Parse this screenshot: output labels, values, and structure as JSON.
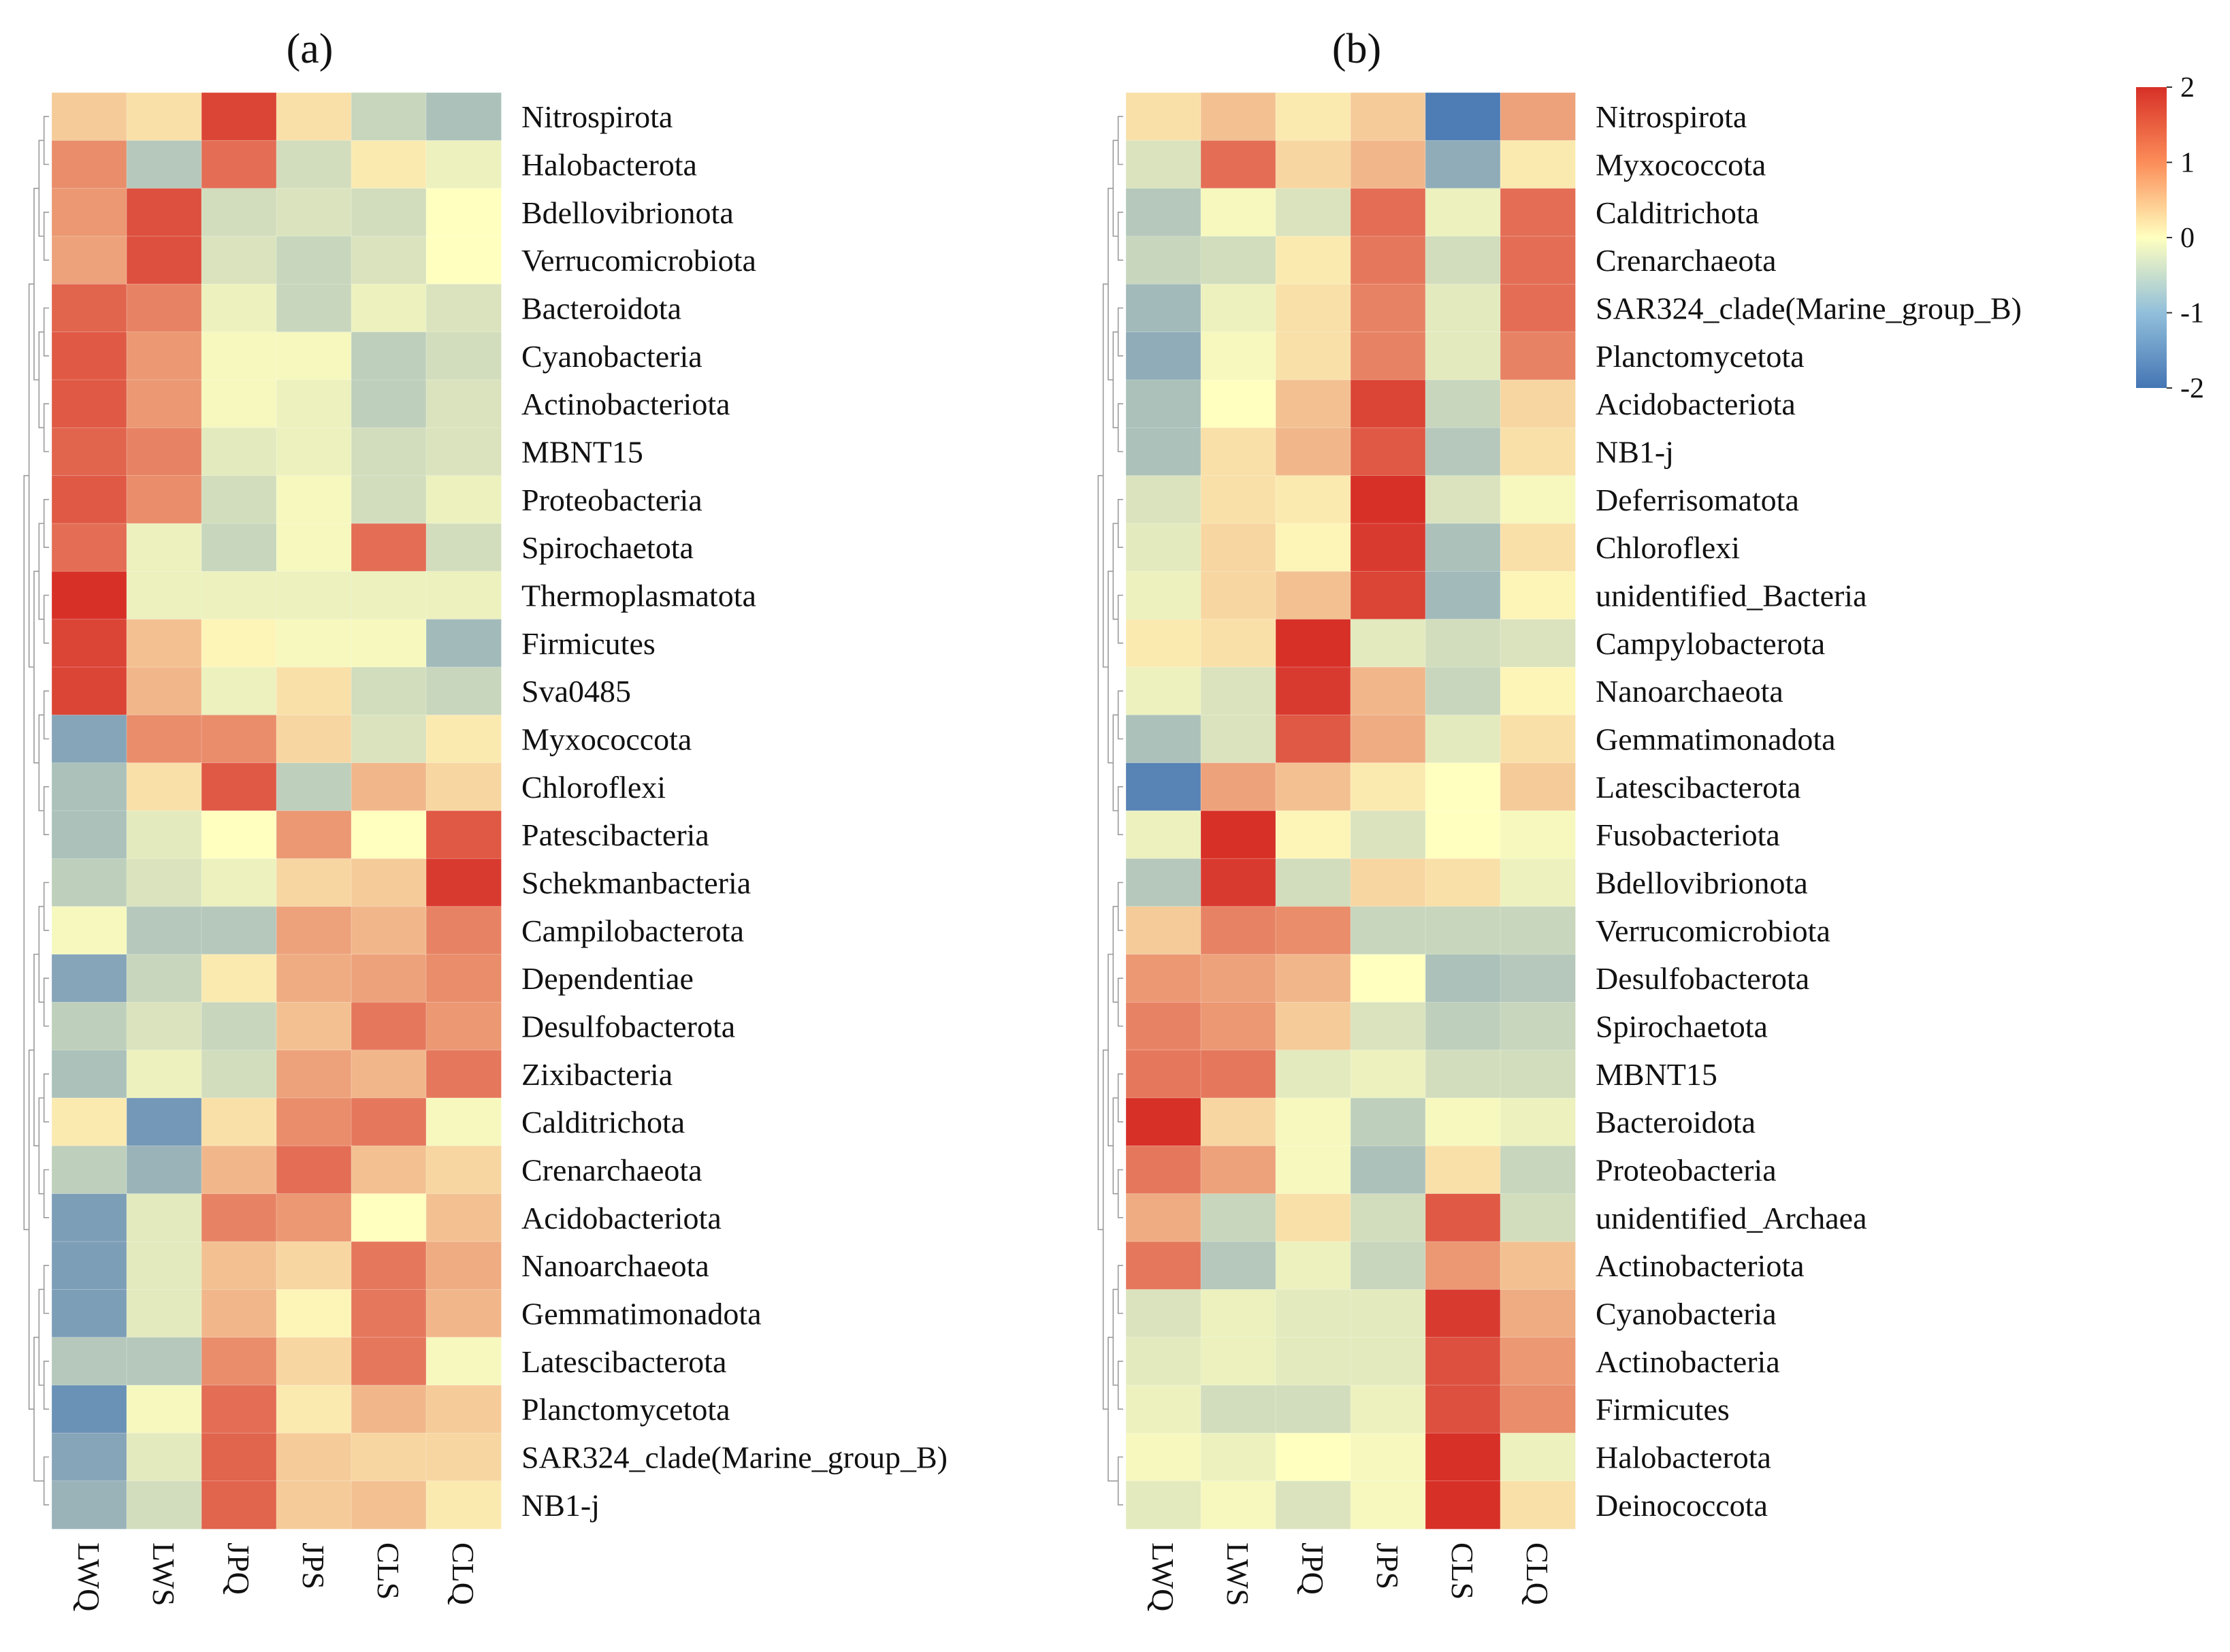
{
  "palette": {
    "low": "#4575b4",
    "mid": "#ffffbf",
    "high": "#d73027"
  },
  "chart_data": [
    {
      "type": "heatmap",
      "title": "(a)",
      "columns": [
        "LWQ",
        "LWS",
        "JPQ",
        "JPS",
        "CLS",
        "CLQ"
      ],
      "rows": [
        "Nitrospirota",
        "Halobacterota",
        "Bdellovibrionota",
        "Verrucomicrobiota",
        "Bacteroidota",
        "Cyanobacteria",
        "Actinobacteriota",
        "MBNT15",
        "Proteobacteria",
        "Spirochaetota",
        "Thermoplasmatota",
        "Firmicutes",
        "Sva0485",
        "Myxococcota",
        "Chloroflexi",
        "Patescibacteria",
        "Schekmanbacteria",
        "Campilobacterota",
        "Dependentiae",
        "Desulfobacterota",
        "Zixibacteria",
        "Calditrichota",
        "Crenarchaeota",
        "Acidobacteriota",
        "Nanoarchaeota",
        "Gemmatimonadota",
        "Latescibacterota",
        "Planctomycetota",
        "SAR324_clade(Marine_group_B)",
        "NB1-j"
      ],
      "values": [
        [
          0.5,
          0.3,
          1.8,
          0.3,
          -0.6,
          -0.9
        ],
        [
          1.1,
          -0.8,
          1.4,
          -0.5,
          0.2,
          -0.2
        ],
        [
          1.0,
          1.7,
          -0.5,
          -0.4,
          -0.5,
          0.0
        ],
        [
          0.9,
          1.7,
          -0.4,
          -0.6,
          -0.4,
          0.0
        ],
        [
          1.5,
          1.2,
          -0.2,
          -0.6,
          -0.2,
          -0.4
        ],
        [
          1.6,
          1.0,
          -0.1,
          -0.1,
          -0.7,
          -0.5
        ],
        [
          1.6,
          1.0,
          -0.1,
          -0.2,
          -0.7,
          -0.4
        ],
        [
          1.5,
          1.2,
          -0.3,
          -0.2,
          -0.5,
          -0.4
        ],
        [
          1.6,
          1.1,
          -0.5,
          -0.1,
          -0.5,
          -0.2
        ],
        [
          1.4,
          -0.2,
          -0.6,
          -0.1,
          1.4,
          -0.5
        ],
        [
          2.1,
          -0.2,
          -0.2,
          -0.2,
          -0.2,
          -0.2
        ],
        [
          1.8,
          0.6,
          0.1,
          -0.1,
          -0.1,
          -1.0
        ],
        [
          1.8,
          0.7,
          -0.2,
          0.3,
          -0.5,
          -0.6
        ],
        [
          -1.3,
          1.1,
          1.1,
          0.4,
          -0.4,
          0.2
        ],
        [
          -0.9,
          0.3,
          1.6,
          -0.7,
          0.7,
          0.4
        ],
        [
          -0.9,
          -0.3,
          0.0,
          1.0,
          0.0,
          1.6
        ],
        [
          -0.7,
          -0.4,
          -0.2,
          0.4,
          0.5,
          1.9
        ],
        [
          -0.1,
          -0.8,
          -0.8,
          0.9,
          0.7,
          1.2
        ],
        [
          -1.3,
          -0.6,
          0.2,
          0.8,
          0.9,
          1.1
        ],
        [
          -0.7,
          -0.4,
          -0.6,
          0.6,
          1.3,
          1.0
        ],
        [
          -0.9,
          -0.2,
          -0.5,
          0.9,
          0.7,
          1.3
        ],
        [
          0.2,
          -1.5,
          0.3,
          1.1,
          1.3,
          -0.1
        ],
        [
          -0.7,
          -1.1,
          0.7,
          1.4,
          0.6,
          0.4
        ],
        [
          -1.4,
          -0.3,
          1.2,
          1.0,
          0.0,
          0.6
        ],
        [
          -1.4,
          -0.3,
          0.6,
          0.4,
          1.3,
          0.8
        ],
        [
          -1.4,
          -0.3,
          0.7,
          0.1,
          1.3,
          0.7
        ],
        [
          -0.8,
          -0.8,
          1.1,
          0.4,
          1.3,
          -0.1
        ],
        [
          -1.6,
          -0.1,
          1.4,
          0.2,
          0.7,
          0.5
        ],
        [
          -1.3,
          -0.3,
          1.5,
          0.5,
          0.4,
          0.4
        ],
        [
          -1.1,
          -0.5,
          1.5,
          0.5,
          0.6,
          0.2
        ]
      ],
      "color_scale": {
        "min": -2,
        "max": 2,
        "colors": [
          "#4575b4",
          "#ffffbf",
          "#d73027"
        ]
      }
    },
    {
      "type": "heatmap",
      "title": "(b)",
      "columns": [
        "LWQ",
        "LWS",
        "JPQ",
        "JPS",
        "CLS",
        "CLQ"
      ],
      "rows": [
        "Nitrospirota",
        "Myxococcota",
        "Calditrichota",
        "Crenarchaeota",
        "SAR324_clade(Marine_group_B)",
        "Planctomycetota",
        "Acidobacteriota",
        "NB1-j",
        "Deferrisomatota",
        "Chloroflexi",
        "unidentified_Bacteria",
        "Campylobacterota",
        "Nanoarchaeota",
        "Gemmatimonadota",
        "Latescibacterota",
        "Fusobacteriota",
        "Bdellovibrionota",
        "Verrucomicrobiota",
        "Desulfobacterota",
        "Spirochaetota",
        "MBNT15",
        "Bacteroidota",
        "Proteobacteria",
        "unidentified_Archaea",
        "Actinobacteriota",
        "Cyanobacteria",
        "Actinobacteria",
        "Firmicutes",
        "Halobacterota",
        "Deinococcota"
      ],
      "values": [
        [
          0.3,
          0.6,
          0.2,
          0.5,
          -1.9,
          0.9
        ],
        [
          -0.4,
          1.4,
          0.4,
          0.7,
          -1.2,
          0.2
        ],
        [
          -0.8,
          -0.1,
          -0.4,
          1.4,
          -0.2,
          1.4
        ],
        [
          -0.6,
          -0.5,
          0.2,
          1.3,
          -0.5,
          1.4
        ],
        [
          -1.0,
          -0.2,
          0.3,
          1.2,
          -0.3,
          1.4
        ],
        [
          -1.2,
          -0.1,
          0.3,
          1.2,
          -0.3,
          1.2
        ],
        [
          -0.9,
          0.0,
          0.6,
          1.8,
          -0.6,
          0.4
        ],
        [
          -0.9,
          0.3,
          0.7,
          1.6,
          -0.8,
          0.3
        ],
        [
          -0.4,
          0.3,
          0.2,
          2.1,
          -0.4,
          -0.1
        ],
        [
          -0.3,
          0.4,
          0.1,
          1.9,
          -0.9,
          0.3
        ],
        [
          -0.2,
          0.4,
          0.6,
          1.8,
          -1.0,
          0.1
        ],
        [
          0.2,
          0.3,
          2.1,
          -0.3,
          -0.5,
          -0.4
        ],
        [
          -0.2,
          -0.4,
          1.9,
          0.7,
          -0.6,
          0.1
        ],
        [
          -0.9,
          -0.4,
          1.6,
          0.8,
          -0.3,
          0.3
        ],
        [
          -1.8,
          0.9,
          0.6,
          0.2,
          0.0,
          0.5
        ],
        [
          -0.2,
          2.1,
          0.1,
          -0.4,
          0.0,
          -0.1
        ],
        [
          -0.8,
          1.9,
          -0.5,
          0.4,
          0.3,
          -0.2
        ],
        [
          0.5,
          1.2,
          1.1,
          -0.6,
          -0.6,
          -0.6
        ],
        [
          1.0,
          0.9,
          0.7,
          0.0,
          -0.9,
          -0.8
        ],
        [
          1.2,
          1.0,
          0.5,
          -0.4,
          -0.7,
          -0.6
        ],
        [
          1.3,
          1.3,
          -0.3,
          -0.2,
          -0.5,
          -0.5
        ],
        [
          2.0,
          0.4,
          -0.1,
          -0.7,
          -0.1,
          -0.2
        ],
        [
          1.3,
          0.9,
          -0.1,
          -0.9,
          0.3,
          -0.6
        ],
        [
          0.8,
          -0.6,
          0.3,
          -0.5,
          1.6,
          -0.5
        ],
        [
          1.3,
          -0.8,
          -0.2,
          -0.6,
          1.0,
          0.6
        ],
        [
          -0.4,
          -0.2,
          -0.3,
          -0.3,
          1.9,
          0.8
        ],
        [
          -0.3,
          -0.2,
          -0.3,
          -0.3,
          1.7,
          1.0
        ],
        [
          -0.2,
          -0.5,
          -0.5,
          -0.2,
          1.7,
          1.1
        ],
        [
          -0.1,
          -0.2,
          0.0,
          -0.1,
          2.2,
          -0.2
        ],
        [
          -0.3,
          -0.1,
          -0.4,
          -0.1,
          2.2,
          0.3
        ]
      ],
      "color_scale": {
        "min": -2,
        "max": 2,
        "colors": [
          "#4575b4",
          "#ffffbf",
          "#d73027"
        ]
      }
    }
  ],
  "legend": {
    "ticks": [
      "2",
      "1",
      "0",
      "-1",
      "-2"
    ],
    "tick_values": [
      2,
      1,
      0,
      -1,
      -2
    ],
    "min": -2,
    "max": 2
  }
}
